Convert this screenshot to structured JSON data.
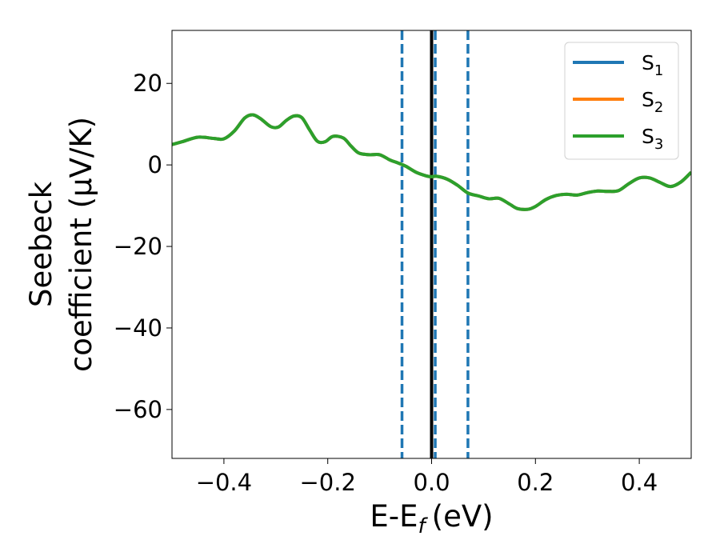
{
  "chart_data": {
    "type": "line",
    "xlabel": "E-E",
    "xlabel_sub": "f",
    "xlabel_unit": "(eV)",
    "ylabel_line1": "Seebeck",
    "ylabel_line2": "coefficient  (μV/K)",
    "xlim": [
      -0.5,
      0.5
    ],
    "ylim": [
      -72,
      33
    ],
    "xticks": [
      -0.4,
      -0.2,
      0.0,
      0.2,
      0.4
    ],
    "xtick_labels": [
      "−0.4",
      "−0.2",
      "0.0",
      "0.2",
      "0.4"
    ],
    "yticks": [
      20,
      0,
      -20,
      -40,
      -60
    ],
    "ytick_labels": [
      "20",
      "0",
      "−20",
      "−40",
      "−60"
    ],
    "grid": false,
    "legend_position": "top-right",
    "vlines": [
      {
        "x": -0.057,
        "style": "dashed",
        "color": "#1f77b4"
      },
      {
        "x": 0.007,
        "style": "dashed",
        "color": "#1f77b4"
      },
      {
        "x": 0.07,
        "style": "dashed",
        "color": "#1f77b4"
      },
      {
        "x": 0.0,
        "style": "solid",
        "color": "#000000"
      }
    ],
    "x": [
      -0.5,
      -0.48,
      -0.45,
      -0.42,
      -0.4,
      -0.38,
      -0.36,
      -0.345,
      -0.33,
      -0.31,
      -0.295,
      -0.28,
      -0.265,
      -0.25,
      -0.235,
      -0.22,
      -0.205,
      -0.19,
      -0.17,
      -0.155,
      -0.14,
      -0.12,
      -0.1,
      -0.08,
      -0.065,
      -0.05,
      -0.03,
      -0.01,
      0.0,
      0.01,
      0.03,
      0.05,
      0.07,
      0.09,
      0.11,
      0.13,
      0.15,
      0.165,
      0.185,
      0.2,
      0.22,
      0.24,
      0.26,
      0.28,
      0.3,
      0.32,
      0.34,
      0.36,
      0.38,
      0.4,
      0.42,
      0.44,
      0.46,
      0.48,
      0.5
    ],
    "series": [
      {
        "name": "S",
        "name_sub": "1",
        "color": "#1f77b4",
        "values": [
          5.0,
          5.7,
          6.8,
          6.5,
          6.4,
          8.3,
          11.5,
          12.3,
          11.4,
          9.4,
          9.3,
          10.9,
          12.0,
          11.6,
          8.6,
          5.8,
          5.7,
          7.0,
          6.6,
          4.6,
          2.9,
          2.5,
          2.5,
          1.2,
          0.5,
          -0.3,
          -1.8,
          -2.7,
          -2.9,
          -2.8,
          -3.5,
          -5.0,
          -6.9,
          -7.6,
          -8.3,
          -8.2,
          -9.6,
          -10.7,
          -10.9,
          -10.2,
          -8.5,
          -7.5,
          -7.2,
          -7.4,
          -6.8,
          -6.4,
          -6.5,
          -6.3,
          -4.6,
          -3.2,
          -3.2,
          -4.3,
          -5.3,
          -4.2,
          -1.8
        ]
      },
      {
        "name": "S",
        "name_sub": "2",
        "color": "#ff7f0e",
        "values": [
          5.0,
          5.7,
          6.8,
          6.5,
          6.4,
          8.3,
          11.5,
          12.3,
          11.4,
          9.4,
          9.3,
          10.9,
          12.0,
          11.6,
          8.6,
          5.8,
          5.7,
          7.0,
          6.6,
          4.6,
          2.9,
          2.5,
          2.5,
          1.2,
          0.5,
          -0.3,
          -1.8,
          -2.7,
          -2.9,
          -2.8,
          -3.5,
          -5.0,
          -6.9,
          -7.6,
          -8.3,
          -8.2,
          -9.6,
          -10.7,
          -10.9,
          -10.2,
          -8.5,
          -7.5,
          -7.2,
          -7.4,
          -6.8,
          -6.4,
          -6.5,
          -6.3,
          -4.6,
          -3.2,
          -3.2,
          -4.3,
          -5.3,
          -4.2,
          -1.8
        ]
      },
      {
        "name": "S",
        "name_sub": "3",
        "color": "#2ca02c",
        "values": [
          5.0,
          5.7,
          6.8,
          6.5,
          6.4,
          8.3,
          11.5,
          12.3,
          11.4,
          9.4,
          9.3,
          10.9,
          12.0,
          11.6,
          8.6,
          5.8,
          5.7,
          7.0,
          6.6,
          4.6,
          2.9,
          2.5,
          2.5,
          1.2,
          0.5,
          -0.3,
          -1.8,
          -2.7,
          -2.9,
          -2.8,
          -3.5,
          -5.0,
          -6.9,
          -7.6,
          -8.3,
          -8.2,
          -9.6,
          -10.7,
          -10.9,
          -10.2,
          -8.5,
          -7.5,
          -7.2,
          -7.4,
          -6.8,
          -6.4,
          -6.5,
          -6.3,
          -4.6,
          -3.2,
          -3.2,
          -4.3,
          -5.3,
          -4.2,
          -1.8
        ]
      }
    ]
  }
}
